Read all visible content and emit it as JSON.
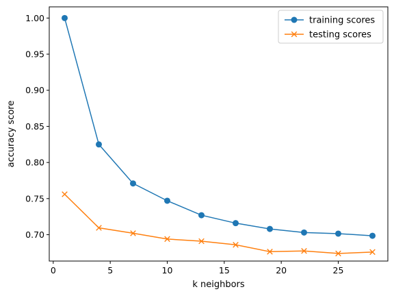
{
  "chart_data": {
    "type": "line",
    "xlabel": "k neighbors",
    "ylabel": "accuracy score",
    "xlim": [
      -0.35,
      29.35
    ],
    "ylim": [
      0.6635,
      1.0155
    ],
    "xticks": [
      0,
      5,
      10,
      15,
      20,
      25
    ],
    "yticks": [
      0.7,
      0.75,
      0.8,
      0.85,
      0.9,
      0.95,
      1.0
    ],
    "ytick_labels": [
      "0.70",
      "0.75",
      "0.80",
      "0.85",
      "0.90",
      "0.95",
      "1.00"
    ],
    "grid": false,
    "legend_position": "top-right",
    "x": [
      1,
      4,
      7,
      10,
      13,
      16,
      19,
      22,
      25,
      28
    ],
    "series": [
      {
        "name": "training scores",
        "color": "#1f77b4",
        "marker": "circle",
        "values": [
          1.0,
          0.825,
          0.771,
          0.747,
          0.727,
          0.716,
          0.708,
          0.703,
          0.7015,
          0.6985
        ]
      },
      {
        "name": "testing scores",
        "color": "#ff7f0e",
        "marker": "x",
        "values": [
          0.756,
          0.7095,
          0.702,
          0.694,
          0.691,
          0.686,
          0.6765,
          0.6775,
          0.674,
          0.676
        ]
      }
    ]
  }
}
